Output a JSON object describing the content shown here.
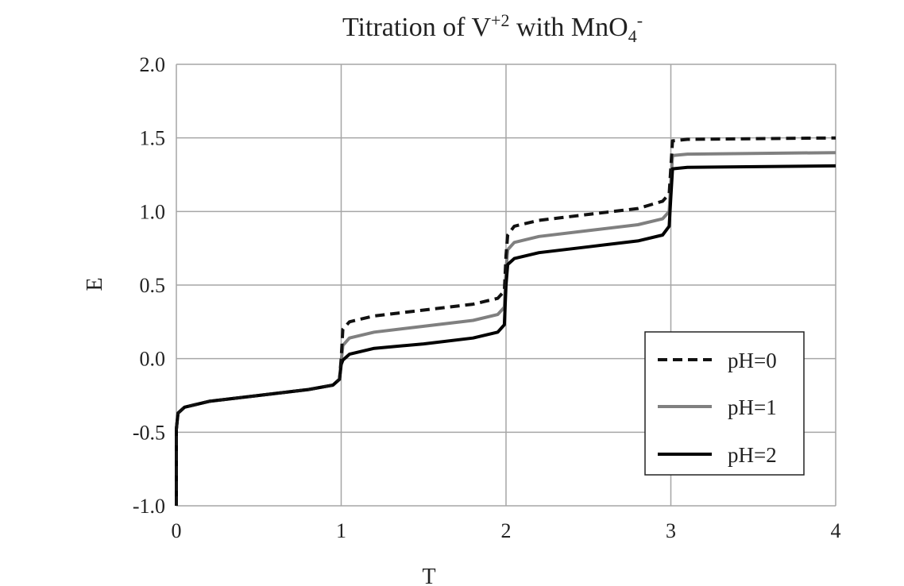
{
  "chart_data": {
    "type": "line",
    "title_parts": {
      "pre": "Titration of V",
      "sup1": "+2",
      "mid": " with MnO",
      "sub": "4",
      "sup2": "-"
    },
    "xlabel": "T",
    "ylabel": "E",
    "xlim": [
      0,
      4
    ],
    "ylim": [
      -1.0,
      2.0
    ],
    "x_ticks": [
      "0",
      "1",
      "2",
      "3",
      "4"
    ],
    "y_ticks": [
      "-1.0",
      "-0.5",
      "0.0",
      "0.5",
      "1.0",
      "1.5",
      "2.0"
    ],
    "grid": true,
    "legend_position": "lower-right",
    "series": [
      {
        "name": "pH=0",
        "style": "dashed",
        "color": "#111111",
        "points": [
          [
            0.0,
            -1.0
          ],
          [
            0.0,
            -0.48
          ],
          [
            0.01,
            -0.37
          ],
          [
            0.05,
            -0.33
          ],
          [
            0.2,
            -0.29
          ],
          [
            0.5,
            -0.25
          ],
          [
            0.8,
            -0.21
          ],
          [
            0.95,
            -0.18
          ],
          [
            0.99,
            -0.14
          ],
          [
            1.0,
            0.0
          ],
          [
            1.01,
            0.2
          ],
          [
            1.05,
            0.25
          ],
          [
            1.2,
            0.29
          ],
          [
            1.5,
            0.33
          ],
          [
            1.8,
            0.37
          ],
          [
            1.95,
            0.41
          ],
          [
            1.99,
            0.46
          ],
          [
            2.0,
            0.7
          ],
          [
            2.01,
            0.84
          ],
          [
            2.05,
            0.9
          ],
          [
            2.2,
            0.94
          ],
          [
            2.5,
            0.98
          ],
          [
            2.8,
            1.02
          ],
          [
            2.95,
            1.07
          ],
          [
            2.99,
            1.12
          ],
          [
            3.0,
            1.3
          ],
          [
            3.01,
            1.48
          ],
          [
            3.1,
            1.49
          ],
          [
            4.0,
            1.5
          ]
        ]
      },
      {
        "name": "pH=1",
        "style": "solid",
        "color": "#808080",
        "points": [
          [
            0.0,
            -1.0
          ],
          [
            0.0,
            -0.48
          ],
          [
            0.01,
            -0.37
          ],
          [
            0.05,
            -0.33
          ],
          [
            0.2,
            -0.29
          ],
          [
            0.5,
            -0.25
          ],
          [
            0.8,
            -0.21
          ],
          [
            0.95,
            -0.18
          ],
          [
            0.99,
            -0.14
          ],
          [
            1.0,
            -0.02
          ],
          [
            1.01,
            0.09
          ],
          [
            1.05,
            0.14
          ],
          [
            1.2,
            0.18
          ],
          [
            1.5,
            0.22
          ],
          [
            1.8,
            0.26
          ],
          [
            1.95,
            0.3
          ],
          [
            1.99,
            0.35
          ],
          [
            2.0,
            0.6
          ],
          [
            2.01,
            0.74
          ],
          [
            2.05,
            0.79
          ],
          [
            2.2,
            0.83
          ],
          [
            2.5,
            0.87
          ],
          [
            2.8,
            0.91
          ],
          [
            2.95,
            0.95
          ],
          [
            2.99,
            1.0
          ],
          [
            3.0,
            1.2
          ],
          [
            3.01,
            1.38
          ],
          [
            3.1,
            1.39
          ],
          [
            4.0,
            1.4
          ]
        ]
      },
      {
        "name": "pH=2",
        "style": "solid",
        "color": "#000000",
        "points": [
          [
            0.0,
            -1.0
          ],
          [
            0.0,
            -0.48
          ],
          [
            0.01,
            -0.37
          ],
          [
            0.05,
            -0.33
          ],
          [
            0.2,
            -0.29
          ],
          [
            0.5,
            -0.25
          ],
          [
            0.8,
            -0.21
          ],
          [
            0.95,
            -0.18
          ],
          [
            0.99,
            -0.14
          ],
          [
            1.0,
            -0.04
          ],
          [
            1.01,
            -0.01
          ],
          [
            1.05,
            0.03
          ],
          [
            1.2,
            0.07
          ],
          [
            1.5,
            0.1
          ],
          [
            1.8,
            0.14
          ],
          [
            1.95,
            0.18
          ],
          [
            1.99,
            0.23
          ],
          [
            2.0,
            0.5
          ],
          [
            2.01,
            0.64
          ],
          [
            2.05,
            0.68
          ],
          [
            2.2,
            0.72
          ],
          [
            2.5,
            0.76
          ],
          [
            2.8,
            0.8
          ],
          [
            2.95,
            0.84
          ],
          [
            2.99,
            0.9
          ],
          [
            3.0,
            1.1
          ],
          [
            3.01,
            1.29
          ],
          [
            3.1,
            1.3
          ],
          [
            4.0,
            1.31
          ]
        ]
      }
    ]
  }
}
